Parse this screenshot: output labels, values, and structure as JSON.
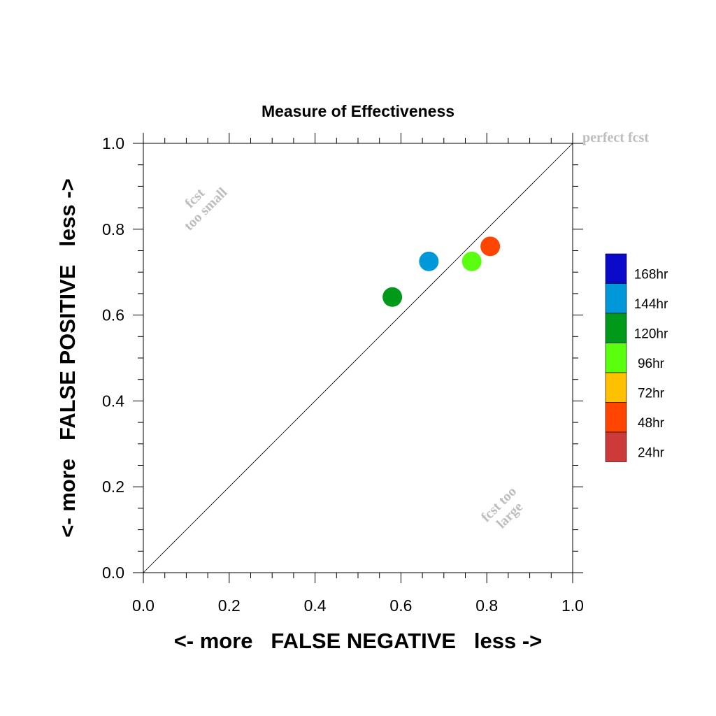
{
  "chart_data": {
    "type": "scatter",
    "title": "Measure of Effectiveness",
    "xlabel": "<- more   FALSE NEGATIVE   less ->",
    "ylabel": "<- more   FALSE POSITIVE   less ->",
    "xlim": [
      0.0,
      1.0
    ],
    "ylim": [
      0.0,
      1.0
    ],
    "x_ticks": [
      "0.0",
      "0.2",
      "0.4",
      "0.6",
      "0.8",
      "1.0"
    ],
    "y_ticks": [
      "0.0",
      "0.2",
      "0.4",
      "0.6",
      "0.8",
      "1.0"
    ],
    "grid": false,
    "diagonal_line": true,
    "annotations": {
      "perfect": "perfect fcst",
      "too_small_line1": "fcst",
      "too_small_line2": "too small",
      "too_large_line1": "fcst too",
      "too_large_line2": "large"
    },
    "points": [
      {
        "label": "120hr",
        "x": 0.58,
        "y": 0.642,
        "color": "#009a1a"
      },
      {
        "label": "144hr",
        "x": 0.665,
        "y": 0.725,
        "color": "#0098d8"
      },
      {
        "label": "96hr",
        "x": 0.765,
        "y": 0.725,
        "color": "#5aff10"
      },
      {
        "label": "48hr",
        "x": 0.808,
        "y": 0.76,
        "color": "#ff4500"
      }
    ],
    "legend": {
      "placement": "right",
      "items": [
        {
          "label": "168hr",
          "color": "#0a0ac8"
        },
        {
          "label": "144hr",
          "color": "#0098d8"
        },
        {
          "label": "120hr",
          "color": "#009a1a"
        },
        {
          "label": "96hr",
          "color": "#5aff10"
        },
        {
          "label": "72hr",
          "color": "#ffc000"
        },
        {
          "label": "48hr",
          "color": "#ff4500"
        },
        {
          "label": "24hr",
          "color": "#cc3a3a"
        }
      ]
    }
  }
}
